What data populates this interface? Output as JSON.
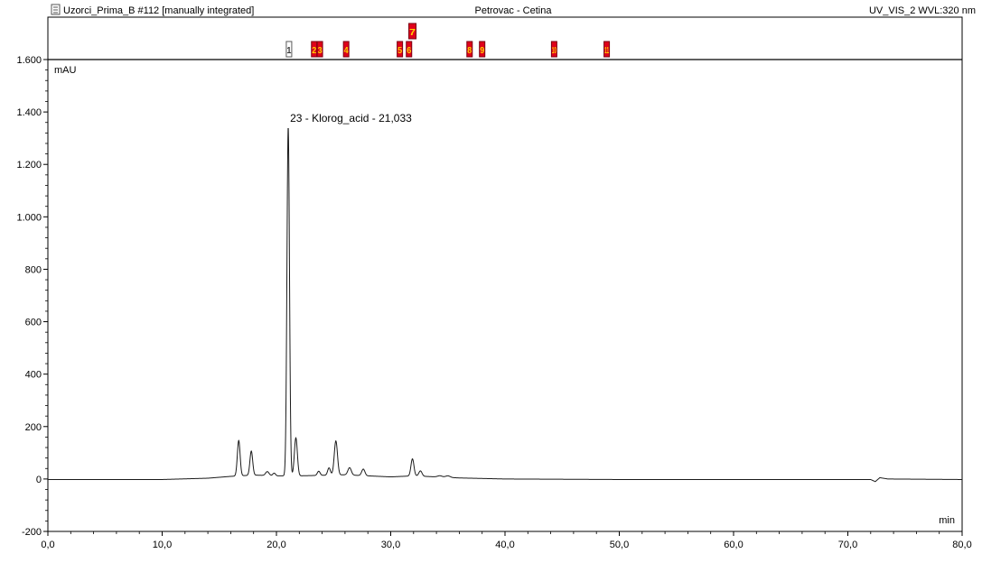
{
  "header": {
    "left_title": "Uzorci_Prima_B #112 [manually integrated]",
    "center_title": "Petrovac - Cetina",
    "right_title": "UV_VIS_2 WVL:320 nm"
  },
  "chart_data": {
    "type": "line",
    "title": "",
    "xlabel": "min",
    "ylabel": "mAU",
    "xlim": [
      0,
      80
    ],
    "ylim": [
      -200,
      1600
    ],
    "x_ticks": [
      0,
      10,
      20,
      30,
      40,
      50,
      60,
      70,
      80
    ],
    "x_tick_labels": [
      "0,0",
      "10,0",
      "20,0",
      "30,0",
      "40,0",
      "50,0",
      "60,0",
      "70,0",
      "80,0"
    ],
    "y_ticks": [
      -200,
      0,
      200,
      400,
      600,
      800,
      1000,
      1200,
      1400,
      1600
    ],
    "y_tick_labels": [
      "-200",
      "0",
      "200",
      "400",
      "600",
      "800",
      "1.000",
      "1.200",
      "1.400",
      "1.600"
    ],
    "grid": false,
    "series": [
      {
        "baseline": [
          [
            0,
            -2
          ],
          [
            10,
            -2
          ],
          [
            14,
            3
          ],
          [
            16,
            10
          ],
          [
            18,
            15
          ],
          [
            20,
            12
          ],
          [
            22,
            12
          ],
          [
            24,
            14
          ],
          [
            26,
            16
          ],
          [
            28,
            12
          ],
          [
            30,
            8
          ],
          [
            32,
            12
          ],
          [
            34,
            8
          ],
          [
            36,
            4
          ],
          [
            40,
            0
          ],
          [
            50,
            -2
          ],
          [
            60,
            -2
          ],
          [
            72,
            -2
          ],
          [
            72.4,
            -10
          ],
          [
            72.8,
            5
          ],
          [
            73.5,
            0
          ],
          [
            80,
            -2
          ]
        ],
        "peaks": [
          {
            "t": 16.7,
            "h": 135,
            "w": 0.12
          },
          {
            "t": 17.8,
            "h": 92,
            "w": 0.12
          },
          {
            "t": 19.2,
            "h": 15,
            "w": 0.15
          },
          {
            "t": 19.8,
            "h": 10,
            "w": 0.12
          },
          {
            "t": 21.03,
            "h": 1330,
            "w": 0.11
          },
          {
            "t": 21.7,
            "h": 145,
            "w": 0.13
          },
          {
            "t": 23.7,
            "h": 16,
            "w": 0.12
          },
          {
            "t": 24.6,
            "h": 28,
            "w": 0.12
          },
          {
            "t": 25.2,
            "h": 130,
            "w": 0.14
          },
          {
            "t": 26.4,
            "h": 28,
            "w": 0.15
          },
          {
            "t": 27.6,
            "h": 25,
            "w": 0.14
          },
          {
            "t": 31.9,
            "h": 65,
            "w": 0.13
          },
          {
            "t": 32.6,
            "h": 20,
            "w": 0.14
          },
          {
            "t": 34.3,
            "h": 5,
            "w": 0.2
          },
          {
            "t": 35.0,
            "h": 6,
            "w": 0.2
          }
        ]
      }
    ],
    "annotations": [
      {
        "x": 21.033,
        "text": "23 - Klorog_acid - 21,033"
      }
    ],
    "peak_markers": [
      {
        "x": 21.1,
        "label": "1",
        "style": "outline"
      },
      {
        "x": 23.3,
        "label": "2",
        "style": "filled"
      },
      {
        "x": 23.8,
        "label": "3",
        "style": "filled"
      },
      {
        "x": 26.1,
        "label": "4",
        "style": "filled"
      },
      {
        "x": 30.8,
        "label": "5",
        "style": "filled"
      },
      {
        "x": 31.6,
        "label": "6",
        "style": "filled"
      },
      {
        "x": 31.9,
        "label": "7",
        "style": "filled",
        "row": "upper"
      },
      {
        "x": 36.9,
        "label": "8",
        "style": "filled"
      },
      {
        "x": 38.0,
        "label": "9",
        "style": "filled"
      },
      {
        "x": 44.3,
        "label": "10",
        "style": "filled"
      },
      {
        "x": 48.9,
        "label": "11",
        "style": "filled"
      }
    ],
    "colors": {
      "trace": "#1a1a1a",
      "axis": "#000000",
      "marker_fill": "#e0001b",
      "marker_text": "#ffd200",
      "marker_outline": "#5a5a5a"
    }
  }
}
